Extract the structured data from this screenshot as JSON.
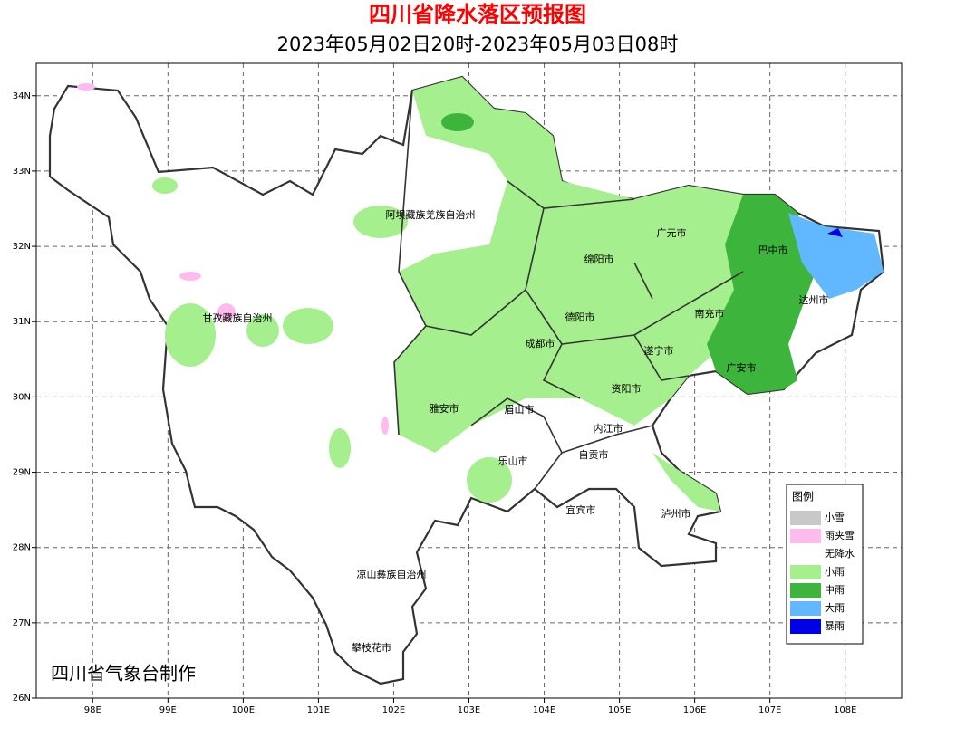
{
  "title": "四川省降水落区预报图",
  "subtitle": "2023年05月02日20时-2023年05月03日08时",
  "lon_lim": [
    97.25,
    108.75
  ],
  "lat_lim": [
    26,
    34.43
  ],
  "lon_ticks": [
    {
      "value": 98,
      "label": "98E"
    },
    {
      "value": 99,
      "label": "99E"
    },
    {
      "value": 100,
      "label": "100E"
    },
    {
      "value": 101,
      "label": "101E"
    },
    {
      "value": 102,
      "label": "102E"
    },
    {
      "value": 103,
      "label": "103E"
    },
    {
      "value": 104,
      "label": "104E"
    },
    {
      "value": 105,
      "label": "105E"
    },
    {
      "value": 106,
      "label": "106E"
    },
    {
      "value": 107,
      "label": "107E"
    },
    {
      "value": 108,
      "label": "108E"
    }
  ],
  "lat_ticks": [
    {
      "value": 26,
      "label": "26N"
    },
    {
      "value": 27,
      "label": "27N"
    },
    {
      "value": 28,
      "label": "28N"
    },
    {
      "value": 29,
      "label": "29N"
    },
    {
      "value": 30,
      "label": "30N"
    },
    {
      "value": 31,
      "label": "31N"
    },
    {
      "value": 32,
      "label": "32N"
    },
    {
      "value": 33,
      "label": "33N"
    },
    {
      "value": 34,
      "label": "34N"
    }
  ],
  "places": [
    "阿坝藏族羌族自治州",
    "甘孜藏族自治州",
    "广元市",
    "巴中市",
    "绵阳市",
    "达州市",
    "德阳市",
    "南充市",
    "成都市",
    "遂宁市",
    "广安市",
    "资阳市",
    "雅安市",
    "眉山市",
    "内江市",
    "自贡市",
    "乐山市",
    "宜宾市",
    "泸州市",
    "凉山彝族自治州",
    "攀枝花市"
  ],
  "legend": {
    "title": "图例",
    "items": [
      {
        "label": "小雪",
        "color": "#c8c8c8"
      },
      {
        "label": "雨夹雪",
        "color": "#ffbbee"
      },
      {
        "label": "无降水",
        "color": "#ffffff"
      },
      {
        "label": "小雨",
        "color": "#a6ef8e"
      },
      {
        "label": "中雨",
        "color": "#3db53d"
      },
      {
        "label": "大雨",
        "color": "#61b8ff"
      },
      {
        "label": "暴雨",
        "color": "#0000e6"
      }
    ]
  },
  "credit": "四川省气象台制作"
}
